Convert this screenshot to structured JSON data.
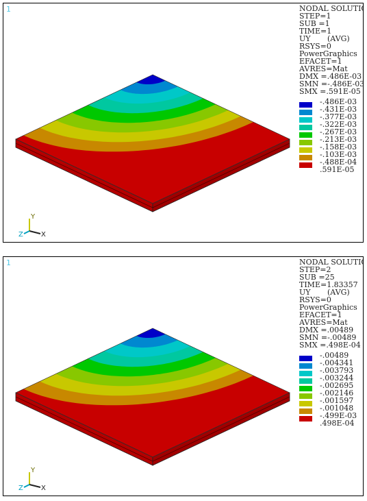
{
  "palette": [
    "#0000c8",
    "#0088d0",
    "#00c8c8",
    "#00c8a0",
    "#00c800",
    "#88c800",
    "#c8c800",
    "#c88800",
    "#c80000"
  ],
  "panels": [
    {
      "window_number": "1",
      "info": [
        "NODAL SOLUTION",
        "STEP=1",
        "SUB =1",
        "TIME=1",
        "UY       (AVG)",
        "RSYS=0",
        "PowerGraphics",
        "EFACET=1",
        "AVRES=Mat",
        "DMX =.486E-03",
        "SMN =-.486E-03",
        "SMX =.591E-05"
      ],
      "legend": [
        "-.486E-03",
        "-.431E-03",
        "-.377E-03",
        "-.322E-03",
        "-.267E-03",
        "-.213E-03",
        "-.158E-03",
        "-.103E-03",
        "-.488E-04",
        ".591E-05"
      ],
      "triad": {
        "y": "Y",
        "x": "X",
        "z": "Z"
      }
    },
    {
      "window_number": "1",
      "info": [
        "NODAL SOLUTION",
        "STEP=2",
        "SUB =25",
        "TIME=1.83357",
        "UY       (AVG)",
        "RSYS=0",
        "PowerGraphics",
        "EFACET=1",
        "AVRES=Mat",
        "DMX =.00489",
        "SMN =-.00489",
        "SMX =.498E-04"
      ],
      "legend": [
        "-.00489",
        "-.004341",
        "-.003793",
        "-.003244",
        "-.002695",
        "-.002146",
        "-.001597",
        "-.001048",
        "-.499E-03",
        ".498E-04"
      ],
      "triad": {
        "y": "Y",
        "x": "X",
        "z": "Z"
      }
    }
  ]
}
